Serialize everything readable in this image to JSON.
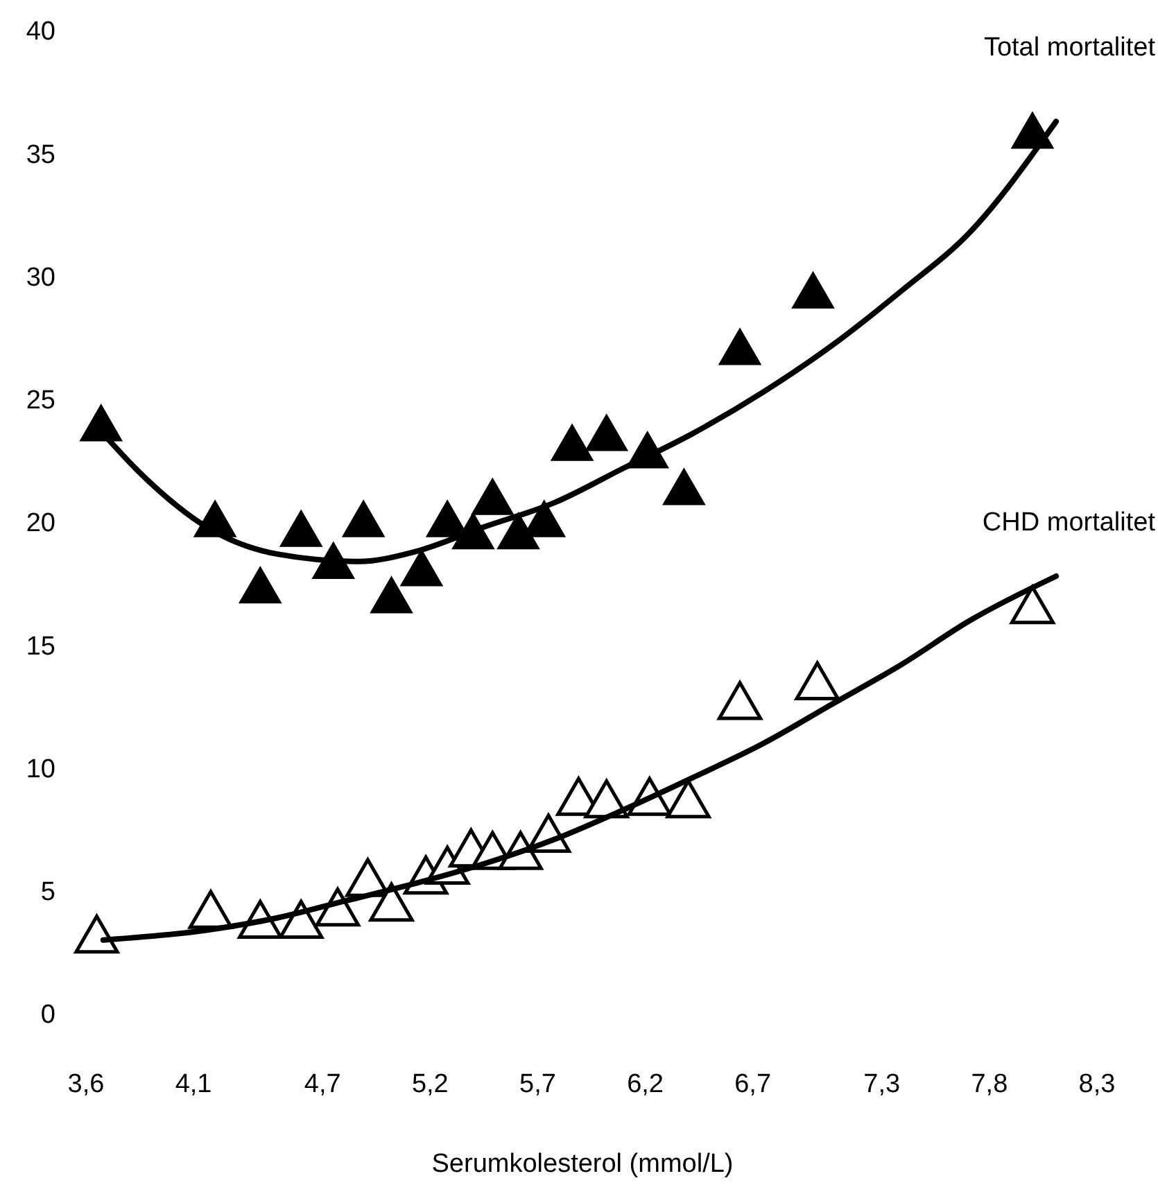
{
  "chart_data": {
    "type": "scatter",
    "xlabel": "Serumkolesterol (mmol/L)",
    "xlim": [
      3.6,
      8.3
    ],
    "ylim": [
      0,
      40
    ],
    "xticks": [
      {
        "value": 3.6,
        "label": "3,6"
      },
      {
        "value": 4.1,
        "label": "4,1"
      },
      {
        "value": 4.7,
        "label": "4,7"
      },
      {
        "value": 5.2,
        "label": "5,2"
      },
      {
        "value": 5.7,
        "label": "5,7"
      },
      {
        "value": 6.2,
        "label": "6,2"
      },
      {
        "value": 6.7,
        "label": "6,7"
      },
      {
        "value": 7.3,
        "label": "7,3"
      },
      {
        "value": 7.8,
        "label": "7,8"
      },
      {
        "value": 8.3,
        "label": "8,3"
      }
    ],
    "yticks": [
      0,
      5,
      10,
      15,
      20,
      25,
      30,
      35,
      40
    ],
    "grid": false,
    "series": [
      {
        "name": "Total mortalitet",
        "marker": "triangle",
        "color": "#000000",
        "x": [
          3.67,
          4.2,
          4.41,
          4.6,
          4.75,
          4.89,
          5.02,
          5.16,
          5.28,
          5.4,
          5.49,
          5.61,
          5.73,
          5.86,
          6.02,
          6.21,
          6.38,
          6.64,
          6.98,
          8.0
        ],
        "values": [
          23.8,
          19.9,
          17.2,
          19.5,
          18.2,
          19.9,
          16.8,
          17.9,
          19.9,
          19.4,
          20.8,
          19.4,
          19.9,
          23.0,
          23.4,
          22.7,
          21.2,
          26.9,
          29.2,
          35.7
        ]
      },
      {
        "type": "line",
        "marker": "none",
        "line_style": "solid",
        "color": "#000000",
        "x": [
          3.68,
          3.84,
          4.2,
          4.49,
          4.87,
          5.13,
          5.45,
          5.78,
          6.1,
          6.42,
          6.75,
          7.07,
          7.39,
          7.71,
          8.11
        ],
        "values": [
          23.6,
          22.1,
          19.6,
          18.7,
          18.4,
          18.8,
          19.8,
          20.8,
          22.2,
          23.6,
          25.3,
          27.2,
          29.4,
          31.8,
          36.3
        ]
      },
      {
        "name": "CHD mortalitet",
        "marker": "triangle-open",
        "color": "#000000",
        "x": [
          3.65,
          4.18,
          4.41,
          4.6,
          4.77,
          4.91,
          5.02,
          5.18,
          5.28,
          5.39,
          5.49,
          5.62,
          5.75,
          5.89,
          6.02,
          6.22,
          6.4,
          6.64,
          7.0,
          8.0
        ],
        "values": [
          3.0,
          4.0,
          3.6,
          3.6,
          4.1,
          5.3,
          4.3,
          5.4,
          5.8,
          6.5,
          6.4,
          6.4,
          7.1,
          8.6,
          8.5,
          8.6,
          8.5,
          12.5,
          13.3,
          16.4
        ]
      },
      {
        "type": "line",
        "marker": "none",
        "line_style": "solid",
        "color": "#000000",
        "x": [
          3.68,
          4.16,
          4.49,
          4.81,
          5.13,
          5.45,
          5.78,
          6.1,
          6.42,
          6.75,
          7.07,
          7.39,
          7.71,
          8.11
        ],
        "values": [
          3.0,
          3.4,
          3.9,
          4.6,
          5.3,
          6.1,
          7.1,
          8.3,
          9.6,
          11.0,
          12.6,
          14.2,
          16.0,
          17.8
        ]
      }
    ]
  }
}
